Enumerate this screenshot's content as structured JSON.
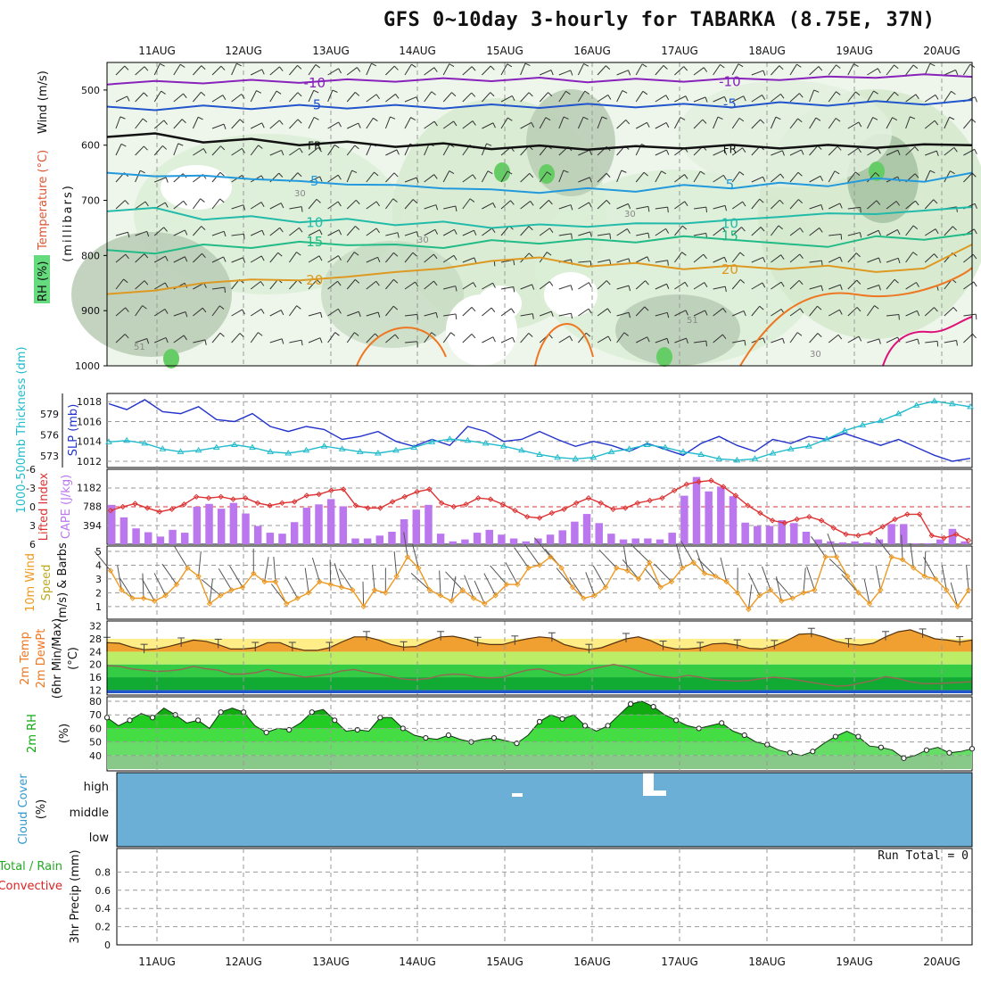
{
  "title": "GFS 0~10day 3-hourly for TABARKA (8.75E, 37N)",
  "dates": [
    "11AUG",
    "12AUG",
    "13AUG",
    "14AUG",
    "15AUG",
    "16AUG",
    "17AUG",
    "18AUG",
    "19AUG",
    "20AUG"
  ],
  "colors": {
    "rh": "#22cc44",
    "temp": "#ff8800",
    "wind": "#333333",
    "slp": "#2233cc",
    "thick": "#22bbcc",
    "li": "#dd3333",
    "cape": "#bb77ee",
    "cloud": "#6bafd6",
    "precip_total": "#22aa22",
    "precip_conv": "#dd2222"
  },
  "chart_data": [
    {
      "panel": "upper-air",
      "type": "heatmap",
      "ylabel_parts": [
        "RH (%)",
        "Temperature (°C)",
        "Wind (m/s)",
        "(millibars)"
      ],
      "yticks": [
        "500",
        "600",
        "700",
        "800",
        "900",
        "1000"
      ],
      "ylim": [
        1000,
        450
      ],
      "contour_labels": [
        "-10",
        "-5",
        "FR",
        "5",
        "10",
        "15",
        "20",
        "30",
        "51"
      ],
      "isotherms": [
        {
          "label": "-10",
          "values": [
            -10,
            -10,
            -10,
            -10,
            -10,
            -10,
            -10,
            -10,
            -10,
            -10
          ]
        },
        {
          "label": "-5",
          "values": [
            -5,
            -5,
            -5,
            -5,
            -5,
            -5,
            -5,
            -5,
            -5,
            -5
          ]
        },
        {
          "label": "FR",
          "values": [
            0,
            0,
            0,
            0,
            0,
            0,
            0,
            0,
            0,
            0
          ]
        },
        {
          "label": "5",
          "values": [
            5,
            5,
            5,
            5,
            5,
            5,
            5,
            5,
            5,
            5
          ]
        },
        {
          "label": "10",
          "values": [
            10,
            10,
            10,
            10,
            10,
            10,
            10,
            10,
            10,
            10
          ]
        },
        {
          "label": "15",
          "values": [
            15,
            15,
            15,
            15,
            15,
            15,
            15,
            15,
            15,
            15
          ]
        },
        {
          "label": "20",
          "values": [
            20,
            20,
            20,
            20,
            20,
            20,
            20,
            20,
            20,
            20
          ]
        }
      ],
      "isotherm_levels_mb": [
        [
          490,
          488,
          487,
          485,
          484,
          486,
          485,
          482,
          478,
          476
        ],
        [
          530,
          528,
          527,
          527,
          526,
          525,
          525,
          522,
          520,
          518
        ],
        [
          585,
          595,
          600,
          603,
          607,
          608,
          606,
          606,
          605,
          600
        ],
        [
          650,
          655,
          665,
          672,
          680,
          678,
          672,
          668,
          660,
          650
        ],
        [
          720,
          735,
          740,
          745,
          750,
          748,
          742,
          730,
          725,
          712
        ],
        [
          790,
          780,
          775,
          780,
          772,
          770,
          765,
          778,
          765,
          760
        ],
        [
          870,
          850,
          845,
          830,
          810,
          820,
          825,
          825,
          830,
          780
        ]
      ]
    },
    {
      "panel": "slp-thickness",
      "type": "line",
      "ylabel_left": "1000-500mb Thickness (dm)",
      "ylabel_right": "SLP (mb)",
      "yticks_thick": [
        "579",
        "576",
        "573"
      ],
      "yticks_slp": [
        "1018",
        "1016",
        "1014",
        "1012"
      ],
      "series": [
        {
          "name": "SLP (mb)",
          "values": [
            1017.8,
            1017.2,
            1018.2,
            1017.0,
            1016.8,
            1017.5,
            1016.2,
            1016.0,
            1016.8,
            1015.5,
            1015.0,
            1015.5,
            1015.2,
            1014.2,
            1014.5,
            1015.0,
            1014.0,
            1013.5,
            1014.2,
            1013.6,
            1015.5,
            1015.0,
            1014.0,
            1014.2,
            1015.0,
            1014.2,
            1013.5,
            1014.0,
            1013.6,
            1013.0,
            1013.8,
            1013.2,
            1012.6,
            1013.8,
            1014.5,
            1013.6,
            1013.0,
            1014.2,
            1013.8,
            1014.5,
            1014.2,
            1014.8,
            1014.2,
            1013.6,
            1014.2,
            1013.4,
            1012.6,
            1012.0,
            1012.3
          ]
        },
        {
          "name": "Thickness (dm)",
          "values": [
            575.0,
            575.2,
            574.8,
            574.0,
            573.6,
            573.8,
            574.2,
            574.6,
            574.2,
            573.6,
            573.4,
            573.8,
            574.4,
            574.0,
            573.6,
            573.4,
            573.8,
            574.2,
            575.0,
            575.4,
            575.2,
            574.8,
            574.4,
            573.8,
            573.2,
            572.8,
            572.6,
            572.8,
            573.6,
            574.0,
            574.6,
            574.2,
            573.6,
            573.2,
            572.6,
            572.4,
            572.6,
            573.4,
            574.0,
            574.4,
            575.4,
            576.6,
            577.4,
            578.0,
            579.0,
            580.2,
            580.8,
            580.4,
            580.0
          ]
        }
      ]
    },
    {
      "panel": "cape-li",
      "type": "bar",
      "ylabel_left": "Lifted Index",
      "ylabel_right": "CAPE (J/kg)",
      "yticks_li": [
        "-6",
        "-3",
        "0",
        "3",
        "6"
      ],
      "yticks_cape": [
        "1182",
        "788",
        "394"
      ],
      "series": [
        {
          "name": "CAPE (J/kg)",
          "values": [
            820,
            560,
            330,
            250,
            160,
            300,
            240,
            780,
            840,
            740,
            860,
            640,
            380,
            240,
            220,
            460,
            760,
            830,
            940,
            790,
            120,
            120,
            180,
            260,
            520,
            720,
            820,
            220,
            60,
            100,
            240,
            300,
            200,
            120,
            60,
            120,
            200,
            290,
            470,
            630,
            440,
            220,
            100,
            120,
            120,
            100,
            240,
            1010,
            1400,
            1100,
            1200,
            1000,
            450,
            380,
            380,
            500,
            440,
            260,
            100,
            60,
            40,
            60,
            40,
            100,
            420,
            420,
            20,
            20,
            100,
            320,
            60
          ]
        },
        {
          "name": "Lifted Index",
          "values": [
            0.6,
            0.0,
            -0.5,
            0.2,
            0.8,
            0.4,
            -0.4,
            -1.6,
            -1.4,
            -1.6,
            -1.2,
            -1.4,
            -0.6,
            -0.2,
            -0.6,
            -0.8,
            -1.8,
            -2.0,
            -2.6,
            -2.8,
            -0.2,
            0.2,
            0.2,
            -0.8,
            -1.6,
            -2.4,
            -2.8,
            -0.6,
            0.0,
            -0.4,
            -1.4,
            -1.2,
            -0.4,
            0.6,
            1.6,
            1.8,
            1.0,
            0.4,
            -0.6,
            -1.4,
            -0.6,
            0.4,
            0.2,
            -0.6,
            -1.0,
            -1.4,
            -2.6,
            -3.6,
            -4.0,
            -4.2,
            -3.2,
            -1.8,
            -0.2,
            1.0,
            2.2,
            2.6,
            2.0,
            1.6,
            2.2,
            3.4,
            4.4,
            4.6,
            4.2,
            3.2,
            2.0,
            1.2,
            1.2,
            4.6,
            5.0,
            4.4,
            5.4
          ]
        }
      ]
    },
    {
      "panel": "wind10m",
      "type": "line",
      "ylabel": "10m Wind Speed (m/s) & Barbs",
      "yticks": [
        "5",
        "4",
        "3",
        "2",
        "1"
      ],
      "series": [
        {
          "name": "10m Wind Speed (m/s)",
          "values": [
            3.6,
            2.2,
            1.6,
            1.6,
            1.4,
            1.8,
            2.6,
            3.8,
            3.2,
            1.2,
            1.8,
            2.2,
            2.4,
            3.4,
            2.8,
            2.8,
            1.2,
            1.6,
            2.0,
            2.8,
            2.6,
            2.4,
            2.2,
            1.0,
            2.2,
            2.0,
            3.2,
            4.6,
            3.8,
            2.2,
            1.8,
            1.4,
            2.2,
            1.6,
            1.2,
            1.8,
            2.6,
            2.6,
            3.8,
            4.0,
            4.6,
            3.8,
            2.4,
            1.6,
            1.8,
            2.4,
            3.8,
            3.6,
            3.0,
            4.2,
            2.4,
            2.8,
            3.8,
            4.2,
            3.4,
            3.2,
            2.8,
            2.0,
            0.8,
            1.8,
            2.2,
            1.4,
            1.6,
            2.0,
            2.2,
            4.6,
            4.6,
            3.2,
            2.0,
            1.2,
            2.2,
            4.6,
            4.4,
            3.8,
            3.2,
            3.0,
            2.2,
            1.0,
            2.2
          ]
        }
      ]
    },
    {
      "panel": "temp2m",
      "type": "area",
      "ylabel": "2m Temp 2m DewPt (6hr Min/Max) (°C)",
      "yticks": [
        "32",
        "28",
        "24",
        "20",
        "16",
        "12"
      ],
      "series": [
        {
          "name": "2m Temp",
          "values": [
            26.8,
            26.6,
            25.4,
            24.6,
            24.8,
            25.6,
            26.6,
            27.6,
            27.2,
            26.2,
            24.8,
            24.8,
            25.2,
            26.8,
            26.8,
            25.2,
            24.4,
            24.4,
            25.2,
            27.0,
            28.6,
            28.6,
            27.6,
            26.2,
            25.4,
            25.6,
            27.2,
            28.6,
            28.8,
            28.0,
            26.8,
            26.2,
            26.2,
            27.2,
            28.0,
            28.6,
            28.2,
            26.2,
            25.2,
            24.6,
            25.2,
            26.6,
            28.0,
            28.6,
            27.4,
            25.6,
            24.8,
            24.8,
            25.2,
            26.4,
            26.6,
            26.0,
            25.0,
            24.8,
            25.8,
            27.4,
            29.4,
            29.6,
            28.6,
            27.2,
            26.4,
            26.0,
            26.6,
            28.6,
            30.2,
            30.8,
            29.4,
            28.0,
            27.6,
            27.0,
            27.6
          ]
        },
        {
          "name": "2m DewPt",
          "values": [
            19.6,
            19.4,
            18.6,
            18.2,
            17.8,
            18.0,
            18.4,
            19.4,
            18.6,
            18.2,
            17.0,
            17.0,
            17.4,
            18.4,
            17.4,
            16.8,
            16.0,
            16.4,
            17.0,
            18.0,
            18.4,
            17.6,
            17.0,
            16.2,
            15.4,
            15.2,
            15.6,
            16.6,
            17.0,
            16.8,
            16.0,
            15.8,
            16.0,
            17.2,
            18.2,
            18.6,
            17.6,
            16.6,
            17.0,
            18.4,
            19.2,
            20.0,
            19.2,
            18.0,
            16.8,
            16.2,
            15.8,
            16.6,
            16.0,
            15.2,
            15.0,
            14.8,
            15.0,
            15.6,
            16.0,
            15.6,
            15.0,
            14.4,
            13.8,
            13.2,
            13.4,
            14.2,
            15.0,
            16.2,
            15.6,
            14.6,
            14.0,
            14.0,
            14.2,
            14.4,
            14.6
          ]
        }
      ]
    },
    {
      "panel": "rh2m",
      "type": "area",
      "ylabel": "2m RH (%)",
      "yticks": [
        "80",
        "70",
        "60",
        "50",
        "40"
      ],
      "series": [
        {
          "name": "2m RH (%)",
          "values": [
            68,
            62,
            66,
            71,
            68,
            75,
            70,
            64,
            66,
            60,
            72,
            75,
            72,
            62,
            57,
            60,
            59,
            64,
            72,
            74,
            66,
            58,
            59,
            58,
            68,
            68,
            60,
            55,
            53,
            52,
            55,
            52,
            50,
            52,
            53,
            51,
            49,
            55,
            65,
            70,
            67,
            70,
            62,
            58,
            62,
            70,
            78,
            80,
            76,
            70,
            66,
            62,
            60,
            62,
            64,
            58,
            55,
            50,
            48,
            44,
            42,
            40,
            43,
            49,
            54,
            58,
            54,
            47,
            46,
            44,
            38,
            40,
            44,
            46,
            42,
            43,
            45
          ]
        }
      ]
    },
    {
      "panel": "cloud",
      "type": "heatmap",
      "ylabel": "Cloud Cover (%)",
      "yticks": [
        "high",
        "middle",
        "low"
      ]
    },
    {
      "panel": "precip",
      "type": "bar",
      "ylabel_parts": [
        "Total / Rain",
        "Convective",
        "3hr Precip (mm)"
      ],
      "yticks": [
        "0.8",
        "0.6",
        "0.4",
        "0.2",
        "0"
      ],
      "ylim": [
        0,
        1
      ],
      "run_total": "Run Total = 0",
      "series": [
        {
          "name": "Total",
          "values": []
        },
        {
          "name": "Convective",
          "values": []
        }
      ]
    }
  ]
}
